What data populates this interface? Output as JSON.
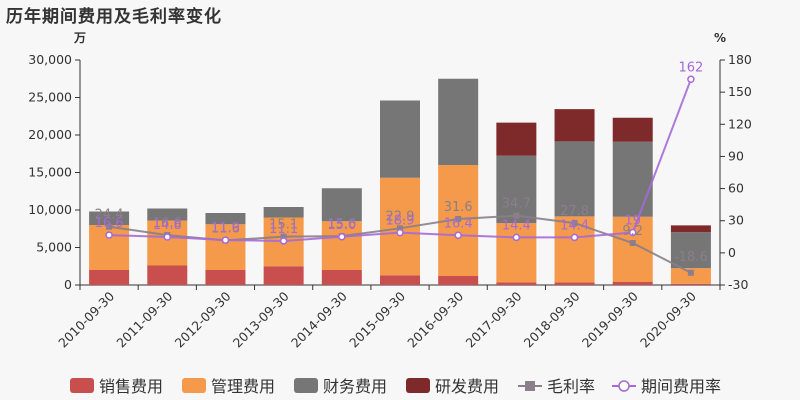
{
  "title": "历年期间费用及毛利率变化",
  "chart_data": {
    "type": "bar",
    "stacked": true,
    "categories": [
      "2010-09-30",
      "2011-09-30",
      "2012-09-30",
      "2013-09-30",
      "2014-09-30",
      "2015-09-30",
      "2016-09-30",
      "2017-09-30",
      "2018-09-30",
      "2019-09-30",
      "2020-09-30"
    ],
    "y_left": {
      "unit": "万",
      "range": [
        0,
        30000
      ],
      "ticks": [
        "0",
        "5,000",
        "10,000",
        "15,000",
        "20,000",
        "25,000",
        "30,000"
      ]
    },
    "y_right": {
      "unit": "%",
      "range": [
        -30,
        180
      ],
      "ticks": [
        "-30",
        "0",
        "30",
        "60",
        "90",
        "120",
        "150",
        "180"
      ]
    },
    "series": [
      {
        "name": "销售费用",
        "type": "bar",
        "color": "#c94f4f",
        "values": [
          2000,
          2600,
          2000,
          2500,
          2000,
          1300,
          1200,
          350,
          350,
          400,
          150
        ]
      },
      {
        "name": "管理费用",
        "type": "bar",
        "color": "#f5994a",
        "values": [
          6000,
          6000,
          6100,
          6500,
          6500,
          13000,
          14800,
          7900,
          8800,
          8700,
          2100
        ]
      },
      {
        "name": "财务费用",
        "type": "bar",
        "color": "#767676",
        "values": [
          1800,
          1600,
          1500,
          1400,
          4400,
          10300,
          11500,
          9000,
          10000,
          10000,
          4800
        ]
      },
      {
        "name": "研发费用",
        "type": "bar",
        "color": "#7f2a2a",
        "values": [
          0,
          0,
          0,
          0,
          0,
          0,
          0,
          4400,
          4300,
          3200,
          900
        ]
      },
      {
        "name": "毛利率",
        "type": "line",
        "axis": "right",
        "color": "#8a7f8a",
        "values": [
          24.4,
          16.6,
          11.6,
          15.1,
          15.6,
          22.9,
          31.6,
          34.7,
          27.8,
          9.2,
          -18.6
        ],
        "labels": [
          "24.4",
          "16.6",
          "11.6",
          "15.1",
          "15.6",
          "22.9",
          "31.6",
          "34.7",
          "27.8",
          "9.2",
          "-18.6"
        ]
      },
      {
        "name": "期间费用率",
        "type": "line",
        "axis": "right",
        "color": "#a56ad8",
        "values": [
          16.6,
          14.8,
          11.9,
          11.1,
          15.0,
          18.9,
          16.4,
          14.4,
          14.4,
          19.0,
          162
        ],
        "labels": [
          "16.6",
          "14.8",
          "11.9",
          "11.1",
          "15.0",
          "18.9",
          "16.4",
          "14.4",
          "14.4",
          "19",
          "162"
        ]
      }
    ],
    "legend_position": "bottom",
    "grid": false
  }
}
